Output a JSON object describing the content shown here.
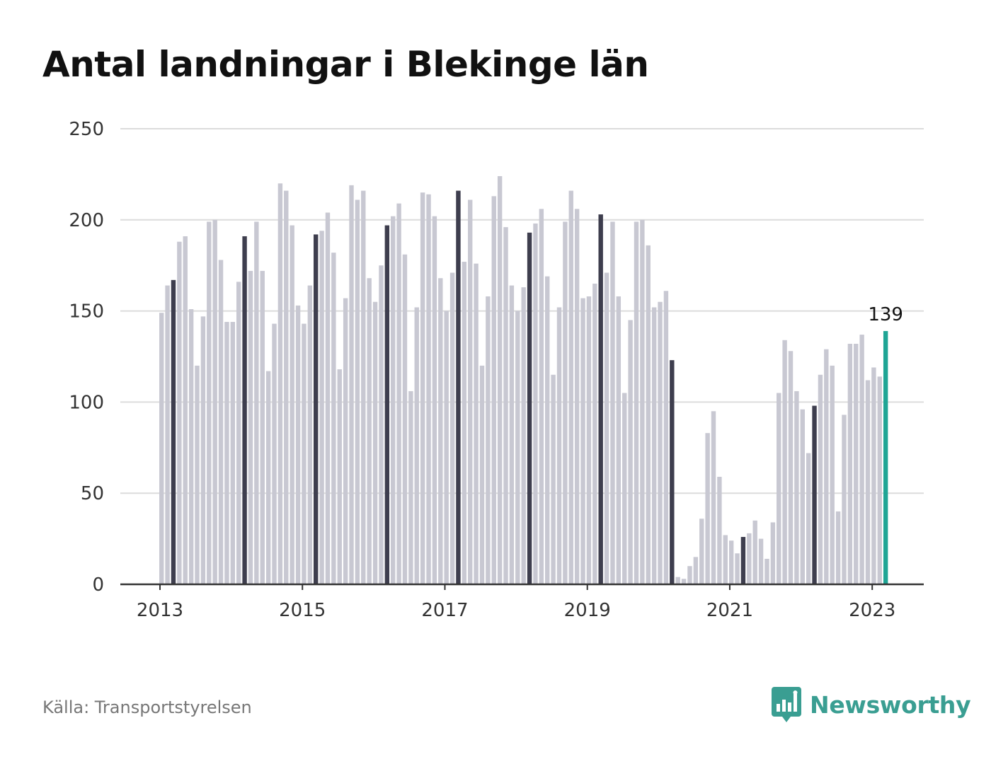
{
  "title": "Antal landningar i Blekinge län",
  "source": "Källa: Transportstyrelsen",
  "brand": {
    "name": "Newsworthy",
    "icon": "newsworthy-logo-icon",
    "color": "#3a9e92"
  },
  "colors": {
    "bar": "#c8c8d2",
    "bar_march": "#3e3e4e",
    "bar_latest": "#1fa595",
    "grid": "#dcdcdc",
    "axis": "#333333"
  },
  "chart_data": {
    "type": "bar",
    "title": "Antal landningar i Blekinge län",
    "xlabel": "",
    "ylabel": "",
    "ylim": [
      0,
      250
    ],
    "y_ticks": [
      0,
      50,
      100,
      150,
      200,
      250
    ],
    "x_tick_labels": [
      "2013",
      "2015",
      "2017",
      "2019",
      "2021",
      "2023"
    ],
    "grid": true,
    "start": "2013-01",
    "end": "2023-03",
    "values": [
      149,
      164,
      167,
      188,
      191,
      151,
      120,
      147,
      199,
      200,
      178,
      144,
      144,
      166,
      191,
      172,
      199,
      172,
      117,
      143,
      220,
      216,
      197,
      153,
      143,
      164,
      192,
      194,
      204,
      182,
      118,
      157,
      219,
      211,
      216,
      168,
      155,
      175,
      197,
      202,
      209,
      181,
      106,
      152,
      215,
      214,
      202,
      168,
      150,
      171,
      216,
      177,
      211,
      176,
      120,
      158,
      213,
      224,
      196,
      164,
      150,
      163,
      193,
      198,
      206,
      169,
      115,
      152,
      199,
      216,
      206,
      157,
      158,
      165,
      203,
      171,
      199,
      158,
      105,
      145,
      199,
      200,
      186,
      152,
      155,
      161,
      123,
      4,
      3,
      10,
      15,
      36,
      83,
      95,
      59,
      27,
      24,
      17,
      26,
      28,
      35,
      25,
      14,
      34,
      105,
      134,
      128,
      106,
      96,
      72,
      98,
      115,
      129,
      120,
      40,
      93,
      132,
      132,
      137,
      112,
      119,
      114,
      139
    ],
    "highlight_month": 3,
    "annotation": {
      "label": "139"
    }
  }
}
